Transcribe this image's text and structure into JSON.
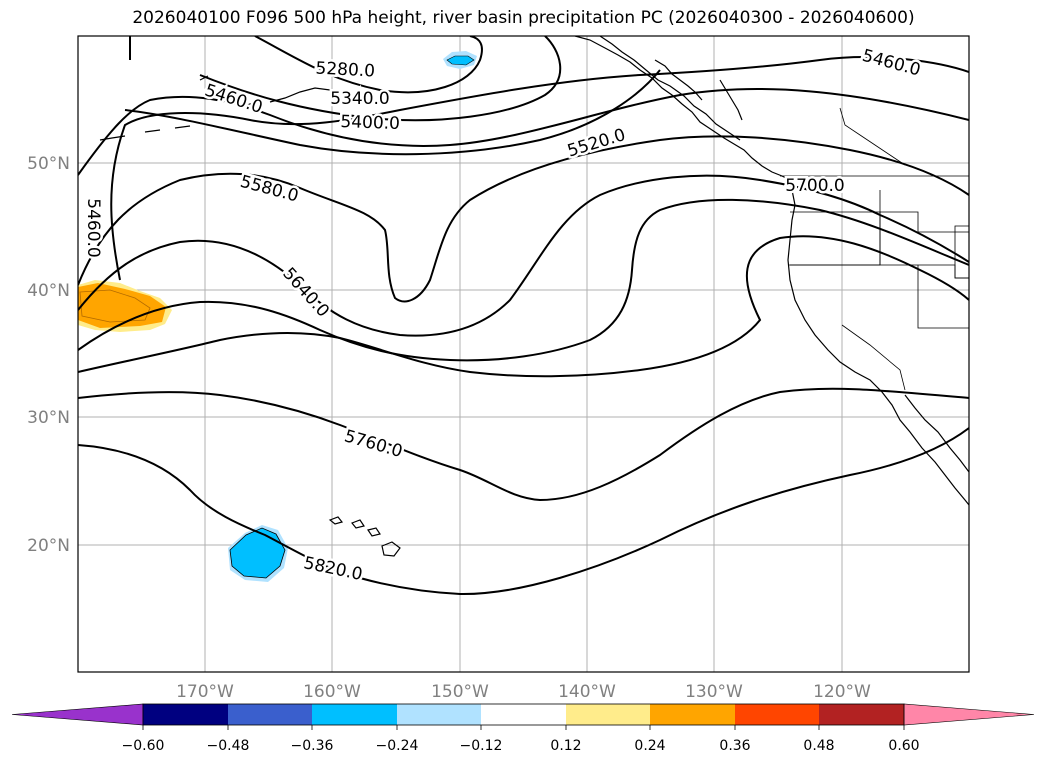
{
  "title": "2026040100 F096 500 hPa height, river basin precipitation PC (2026040300 - 2026040600)",
  "map": {
    "lat_labels": [
      "50°N",
      "40°N",
      "30°N",
      "20°N"
    ],
    "lon_labels": [
      "170°W",
      "160°W",
      "150°W",
      "140°W",
      "130°W",
      "120°W"
    ],
    "contour_labels": [
      "5280.0",
      "5340.0",
      "5400.0",
      "5460.0",
      "5460.0",
      "5460.0",
      "5520.0",
      "5580.0",
      "5640.0",
      "5700.0",
      "5760.0",
      "5820.0"
    ]
  },
  "colorbar": {
    "ticks": [
      "−0.60",
      "−0.48",
      "−0.36",
      "−0.24",
      "−0.12",
      "0.12",
      "0.24",
      "0.36",
      "0.48",
      "0.60"
    ],
    "colors": [
      "#9932CC",
      "#000080",
      "#3A5FCD",
      "#00BFFF",
      "#B0E2FF",
      "#FFFFFF",
      "#FFEC8B",
      "#FFA500",
      "#FF4500",
      "#B22222",
      "#FF86A8"
    ]
  }
}
